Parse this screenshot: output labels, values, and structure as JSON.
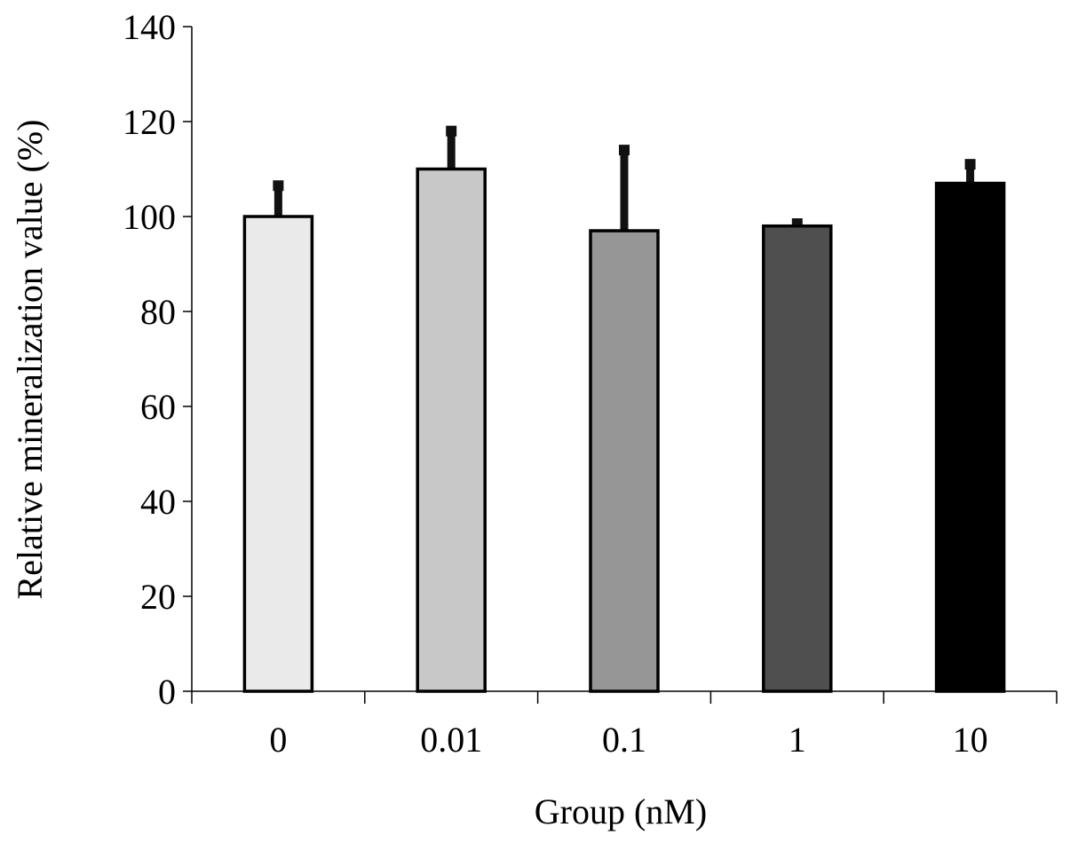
{
  "chart_data": {
    "type": "bar",
    "title": "",
    "xlabel": "Group (nM)",
    "ylabel": "Relative  mineralization value (%)",
    "categories": [
      "0",
      "0.01",
      "0.1",
      "1",
      "10"
    ],
    "values": [
      100,
      110,
      97,
      98,
      107
    ],
    "error_plus": [
      6.5,
      8,
      17,
      0.5,
      4
    ],
    "colors": [
      "#eaeaea",
      "#c8c8c8",
      "#969696",
      "#4f4f4f",
      "#000000"
    ],
    "ylim": [
      0,
      140
    ],
    "yticks": [
      0,
      20,
      40,
      60,
      80,
      100,
      120,
      140
    ],
    "grid": false,
    "legend": "none"
  }
}
